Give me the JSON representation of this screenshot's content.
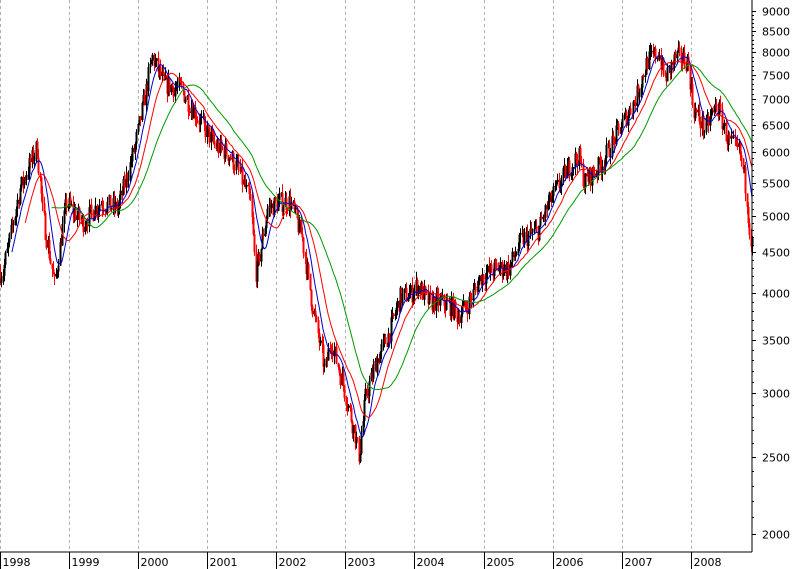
{
  "chart_data": {
    "type": "candlestick",
    "title": "",
    "xlabel": "",
    "ylabel": "",
    "y_scale": "log",
    "ylim": [
      1900,
      9300
    ],
    "xlim": [
      "1998-01-01",
      "2008-11-20"
    ],
    "grid": {
      "vertical": "dashed",
      "horizontal": false
    },
    "x_tick_labels": [
      "1998",
      "1999",
      "2000",
      "2001",
      "2002",
      "2003",
      "2004",
      "2005",
      "2006",
      "2007",
      "2008"
    ],
    "y_tick_labels": [
      9000,
      8500,
      8000,
      7500,
      7000,
      6500,
      6000,
      5500,
      5000,
      4500,
      4000,
      3500,
      3000,
      2500,
      2000
    ],
    "price_path": [
      [
        "1998-01",
        4250
      ],
      [
        "1998-04",
        5400
      ],
      [
        "1998-07",
        6100
      ],
      [
        "1998-08",
        5000
      ],
      [
        "1998-10",
        4100
      ],
      [
        "1998-12",
        5200
      ],
      [
        "1999-03",
        4900
      ],
      [
        "1999-06",
        5200
      ],
      [
        "1999-09",
        5100
      ],
      [
        "1999-12",
        6100
      ],
      [
        "2000-03",
        7900
      ],
      [
        "2000-05",
        7300
      ],
      [
        "2000-08",
        7200
      ],
      [
        "2000-11",
        6600
      ],
      [
        "2001-02",
        6100
      ],
      [
        "2001-04",
        6000
      ],
      [
        "2001-06",
        5700
      ],
      [
        "2001-08",
        5200
      ],
      [
        "2001-09",
        4200
      ],
      [
        "2001-11",
        5100
      ],
      [
        "2002-01",
        5200
      ],
      [
        "2002-03",
        5200
      ],
      [
        "2002-05",
        4700
      ],
      [
        "2002-07",
        3800
      ],
      [
        "2002-09",
        3200
      ],
      [
        "2002-10",
        3500
      ],
      [
        "2002-12",
        3100
      ],
      [
        "2003-02",
        2700
      ],
      [
        "2003-03",
        2500
      ],
      [
        "2003-04",
        2950
      ],
      [
        "2003-06",
        3300
      ],
      [
        "2003-08",
        3550
      ],
      [
        "2003-10",
        3950
      ],
      [
        "2003-12",
        4000
      ],
      [
        "2004-01",
        4100
      ],
      [
        "2004-03",
        3900
      ],
      [
        "2004-05",
        3900
      ],
      [
        "2004-07",
        3850
      ],
      [
        "2004-08",
        3750
      ],
      [
        "2004-10",
        3900
      ],
      [
        "2004-12",
        4200
      ],
      [
        "2005-03",
        4300
      ],
      [
        "2005-05",
        4300
      ],
      [
        "2005-07",
        4650
      ],
      [
        "2005-10",
        4800
      ],
      [
        "2005-12",
        5200
      ],
      [
        "2006-03",
        5700
      ],
      [
        "2006-05",
        5950
      ],
      [
        "2006-06",
        5500
      ],
      [
        "2006-09",
        5800
      ],
      [
        "2006-12",
        6400
      ],
      [
        "2007-03",
        7000
      ],
      [
        "2007-05",
        7800
      ],
      [
        "2007-07",
        8000
      ],
      [
        "2007-08",
        7400
      ],
      [
        "2007-10",
        7900
      ],
      [
        "2007-12",
        7800
      ],
      [
        "2008-01",
        6800
      ],
      [
        "2008-03",
        6400
      ],
      [
        "2008-05",
        6900
      ],
      [
        "2008-07",
        6200
      ],
      [
        "2008-09",
        6000
      ],
      [
        "2008-10",
        5500
      ],
      [
        "2008-11",
        4600
      ]
    ],
    "series": [
      {
        "kind": "moving_average",
        "color": "#0000cc",
        "window": 10
      },
      {
        "kind": "moving_average",
        "color": "#ff0000",
        "window": 20
      },
      {
        "kind": "moving_average",
        "color": "#009900",
        "window": 40
      }
    ],
    "candle_colors": {
      "up": "#000000",
      "down": "#ff0000"
    }
  }
}
